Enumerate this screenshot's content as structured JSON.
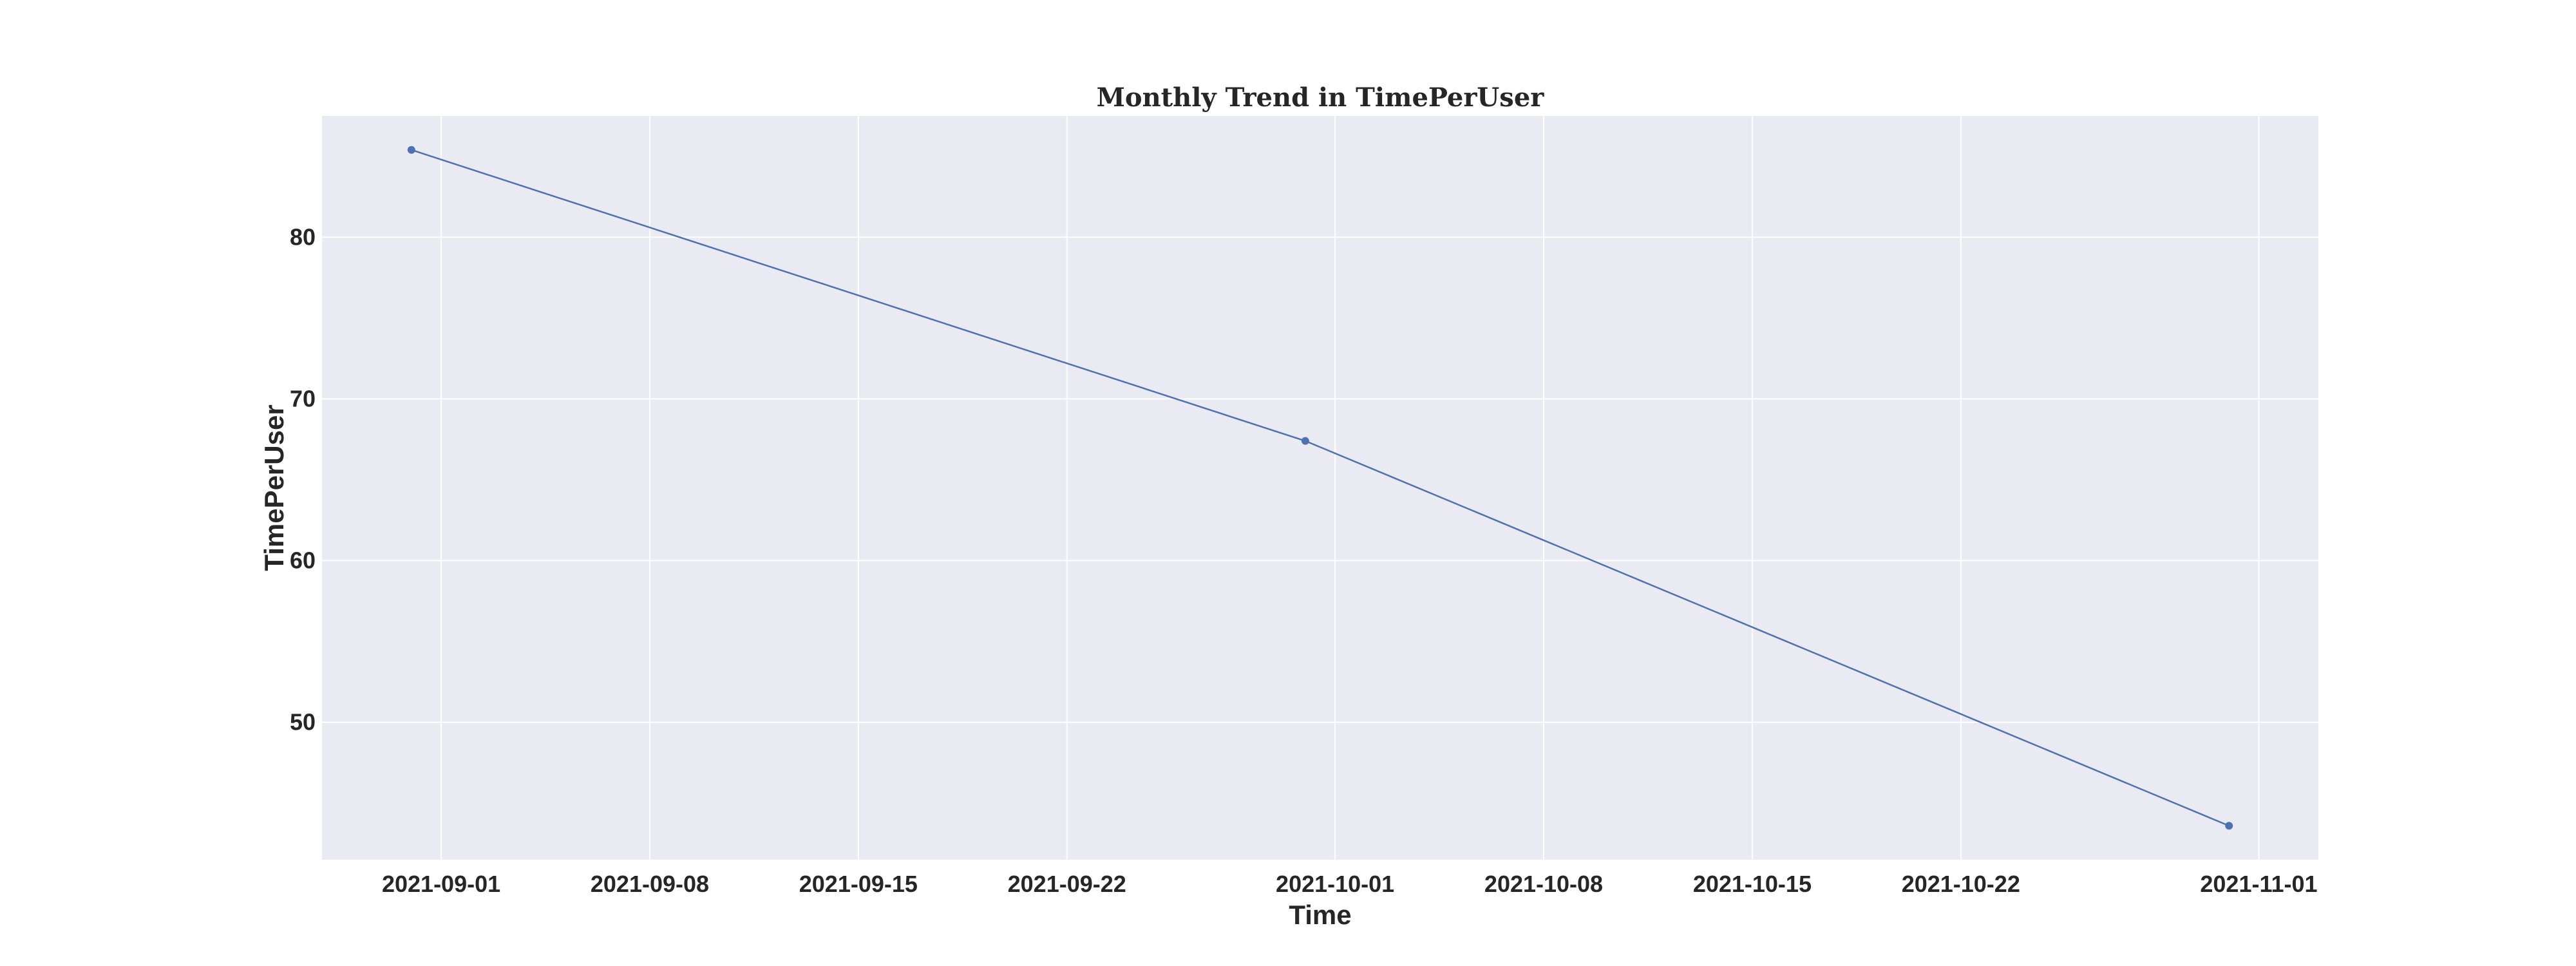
{
  "chart_data": {
    "type": "line",
    "title": "Monthly Trend in TimePerUser",
    "xlabel": "Time",
    "ylabel": "TimePerUser",
    "x": [
      "2021-08-31",
      "2021-09-30",
      "2021-10-31"
    ],
    "series": [
      {
        "values": [
          85.4,
          67.4,
          43.6
        ]
      }
    ],
    "x_ticks": [
      "2021-09-01",
      "2021-09-08",
      "2021-09-15",
      "2021-09-22",
      "2021-10-01",
      "2021-10-08",
      "2021-10-15",
      "2021-10-22",
      "2021-11-01"
    ],
    "y_ticks": [
      50,
      60,
      70,
      80
    ],
    "xlim": [
      "2021-08-28",
      "2021-11-03"
    ],
    "ylim": [
      41.5,
      87.5
    ],
    "grid": true,
    "colors": {
      "background": "#eaeaf2",
      "grid": "#ffffff",
      "line": "#4c72b0",
      "text": "#262626"
    }
  }
}
